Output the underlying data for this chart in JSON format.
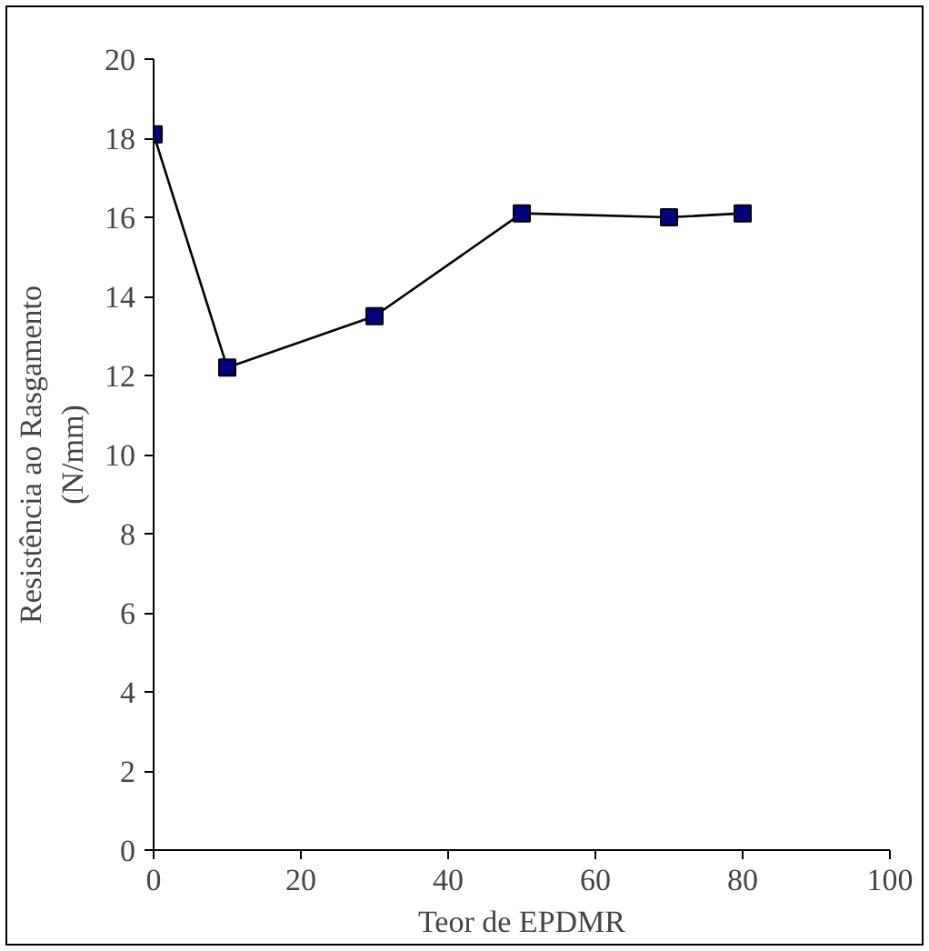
{
  "chart_data": {
    "type": "line",
    "xlabel": "Teor de EPDMR",
    "ylabel": "Resistência ao Rasgamento\n(N/mm)",
    "x": [
      0,
      10,
      30,
      50,
      70,
      80
    ],
    "series": [
      {
        "color": "#000080",
        "values": [
          18.1,
          12.2,
          13.5,
          16.1,
          16.0,
          16.1
        ]
      }
    ],
    "xlim": [
      0,
      100
    ],
    "xticks": [
      0,
      20,
      40,
      60,
      80,
      100
    ],
    "ylim": [
      0,
      20
    ],
    "yticks": [
      0,
      2,
      4,
      6,
      8,
      10,
      12,
      14,
      16,
      18,
      20
    ],
    "grid": false,
    "marker": "square",
    "line_style": "solid"
  }
}
